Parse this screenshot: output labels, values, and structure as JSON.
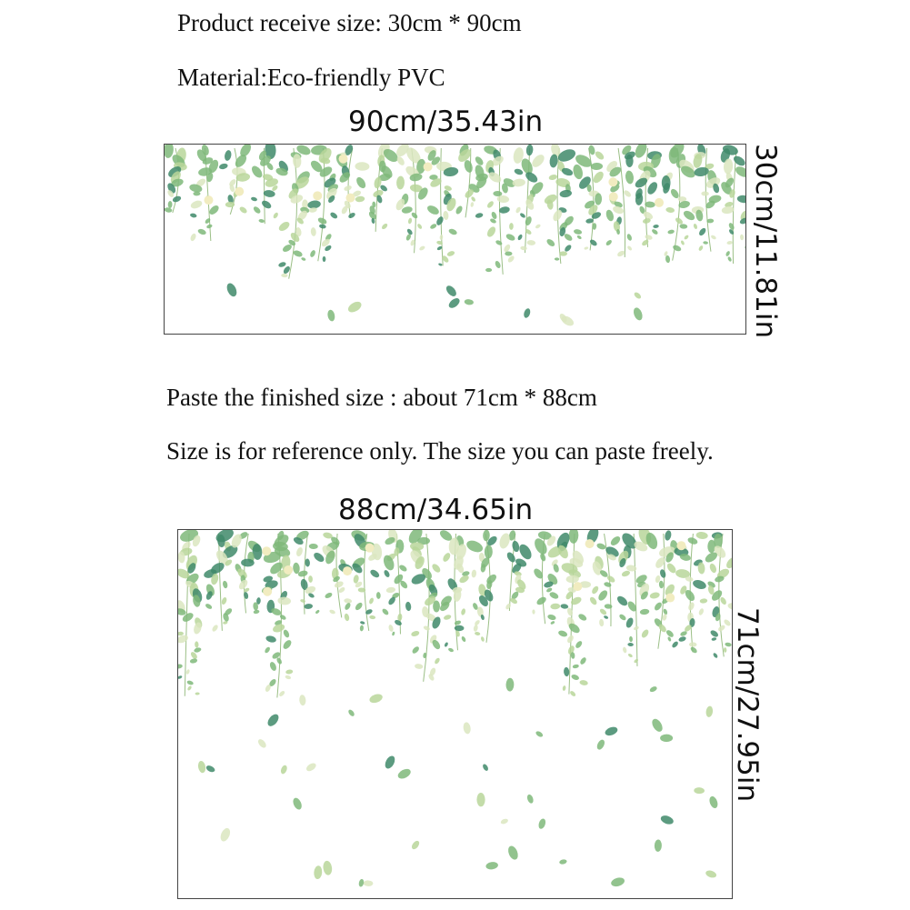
{
  "top_info": {
    "receive_size": "Product receive size: 30cm * 90cm",
    "material": "Material:Eco-friendly PVC"
  },
  "sticker_sheet": {
    "width_label": "90cm/35.43in",
    "height_label": "30cm/11.81in"
  },
  "finished_info": {
    "paste_size": "Paste the finished size : about 71cm * 88cm",
    "note": "Size is for reference only. The size you can paste freely."
  },
  "finished_layout": {
    "width_label": "88cm/34.65in",
    "height_label": "71cm/27.95in"
  },
  "colors": {
    "leaf_dark": "#3f8a6a",
    "leaf_mid": "#7fb87a",
    "leaf_light": "#b9d69a",
    "leaf_pale": "#dbe6c0",
    "flower": "#f1ecc0"
  }
}
